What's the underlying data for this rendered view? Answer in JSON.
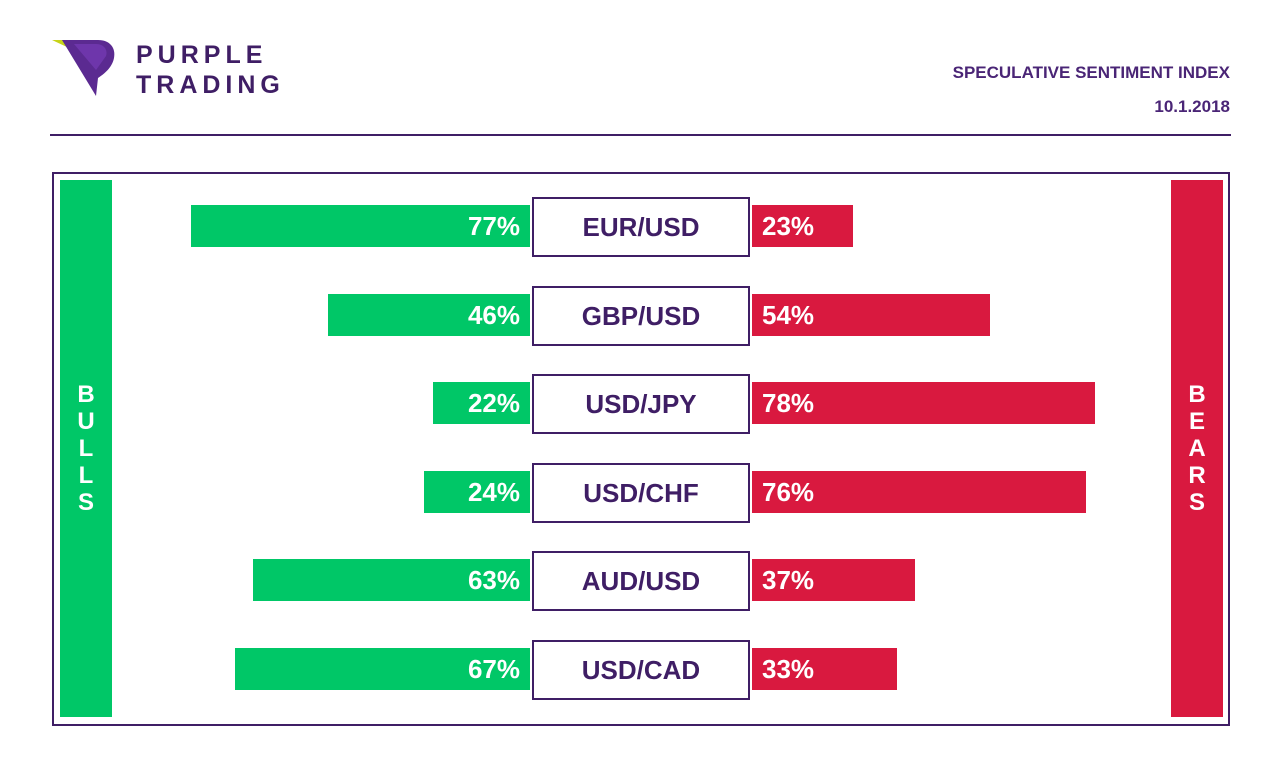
{
  "brand": {
    "line1": "PURPLE",
    "line2": "TRADING"
  },
  "header": {
    "title": "SPECULATIVE SENTIMENT INDEX",
    "date": "10.1.2018"
  },
  "sides": {
    "bulls_label": "BULLS",
    "bears_label": "BEARS"
  },
  "colors": {
    "bull": "#00c767",
    "bear": "#d9193f",
    "brand": "#3f1e65"
  },
  "chart_data": {
    "type": "bar",
    "categories": [
      "EUR/USD",
      "GBP/USD",
      "USD/JPY",
      "USD/CHF",
      "AUD/USD",
      "USD/CAD"
    ],
    "series": [
      {
        "name": "BULLS",
        "values": [
          77,
          46,
          22,
          24,
          63,
          67
        ],
        "labels": [
          "77%",
          "46%",
          "22%",
          "24%",
          "63%",
          "67%"
        ]
      },
      {
        "name": "BEARS",
        "values": [
          23,
          54,
          78,
          76,
          37,
          33
        ],
        "labels": [
          "23%",
          "54%",
          "78%",
          "76%",
          "37%",
          "33%"
        ]
      }
    ],
    "title": "SPECULATIVE SENTIMENT INDEX",
    "xlabel": "",
    "ylabel": "",
    "xlim": [
      0,
      100
    ]
  }
}
